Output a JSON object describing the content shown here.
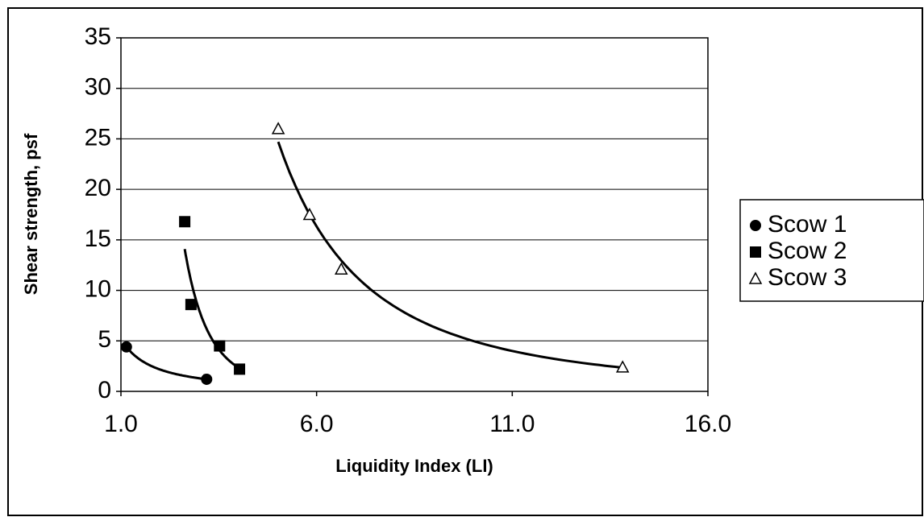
{
  "chart_data": {
    "type": "scatter",
    "xlabel": "Liquidity Index (LI)",
    "ylabel": "Shear strength, psf",
    "xlim": [
      1.0,
      16.0
    ],
    "xticks": [
      {
        "value": 1.0,
        "label": "1.0"
      },
      {
        "value": 6.0,
        "label": "6.0"
      },
      {
        "value": 11.0,
        "label": "11.0"
      },
      {
        "value": 16.0,
        "label": "16.0"
      }
    ],
    "ylim": [
      0,
      35
    ],
    "yticks": [
      0,
      5,
      10,
      15,
      20,
      25,
      30,
      35
    ],
    "grid": true,
    "trendline": "power",
    "legend": "right",
    "series": [
      {
        "name": "Scow 1",
        "color": "#000000",
        "marker": "circle",
        "x": [
          1.14,
          3.19
        ],
        "values": [
          4.4,
          1.2
        ]
      },
      {
        "name": "Scow 2",
        "color": "#000000",
        "marker": "square",
        "x": [
          2.63,
          2.79,
          3.52,
          4.03
        ],
        "values": [
          16.8,
          8.6,
          4.5,
          2.2
        ]
      },
      {
        "name": "Scow 3",
        "color": "#000000",
        "marker": "triangle-open",
        "x": [
          5.02,
          5.82,
          6.63,
          13.82
        ],
        "values": [
          26.0,
          17.5,
          12.1,
          2.4
        ]
      }
    ]
  }
}
